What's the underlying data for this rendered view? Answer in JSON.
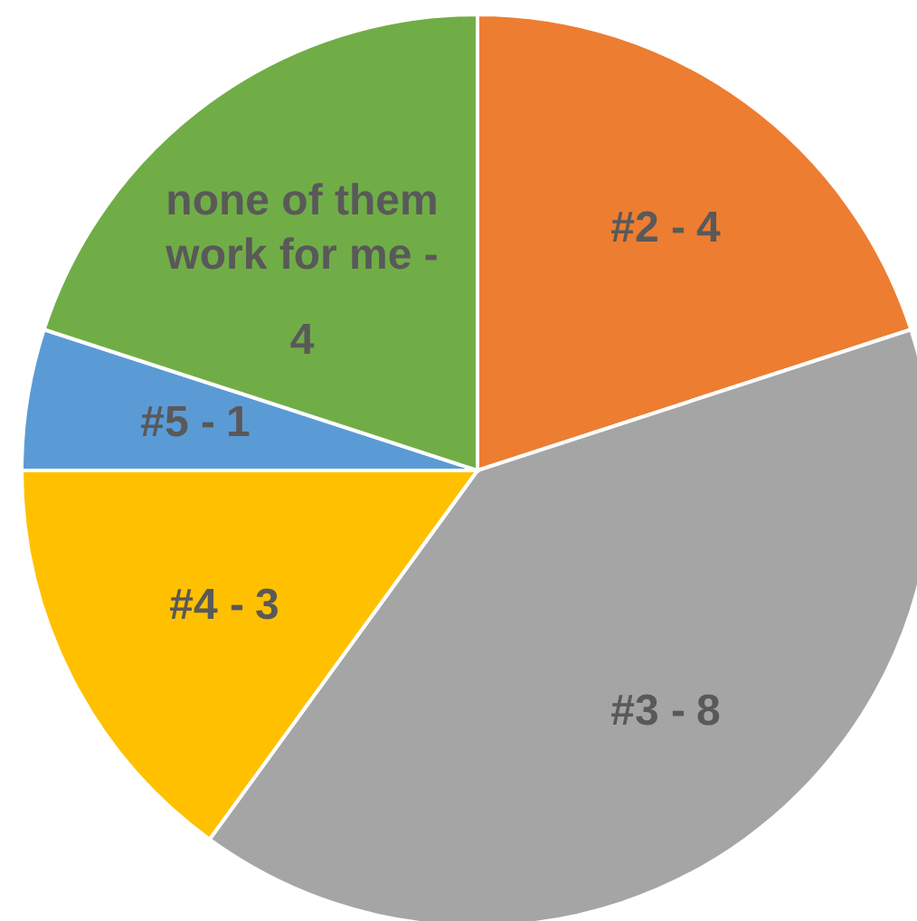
{
  "chart_data": {
    "type": "pie",
    "categories": [
      "#2 -",
      "#3  -",
      "#4 -",
      "#5 -",
      "none of them work for me -"
    ],
    "values": [
      4,
      8,
      3,
      1,
      4
    ],
    "colors": [
      "#ed7d31",
      "#a5a5a5",
      "#ffc000",
      "#5b9bd5",
      "#70ad47"
    ],
    "data_labels": true
  }
}
